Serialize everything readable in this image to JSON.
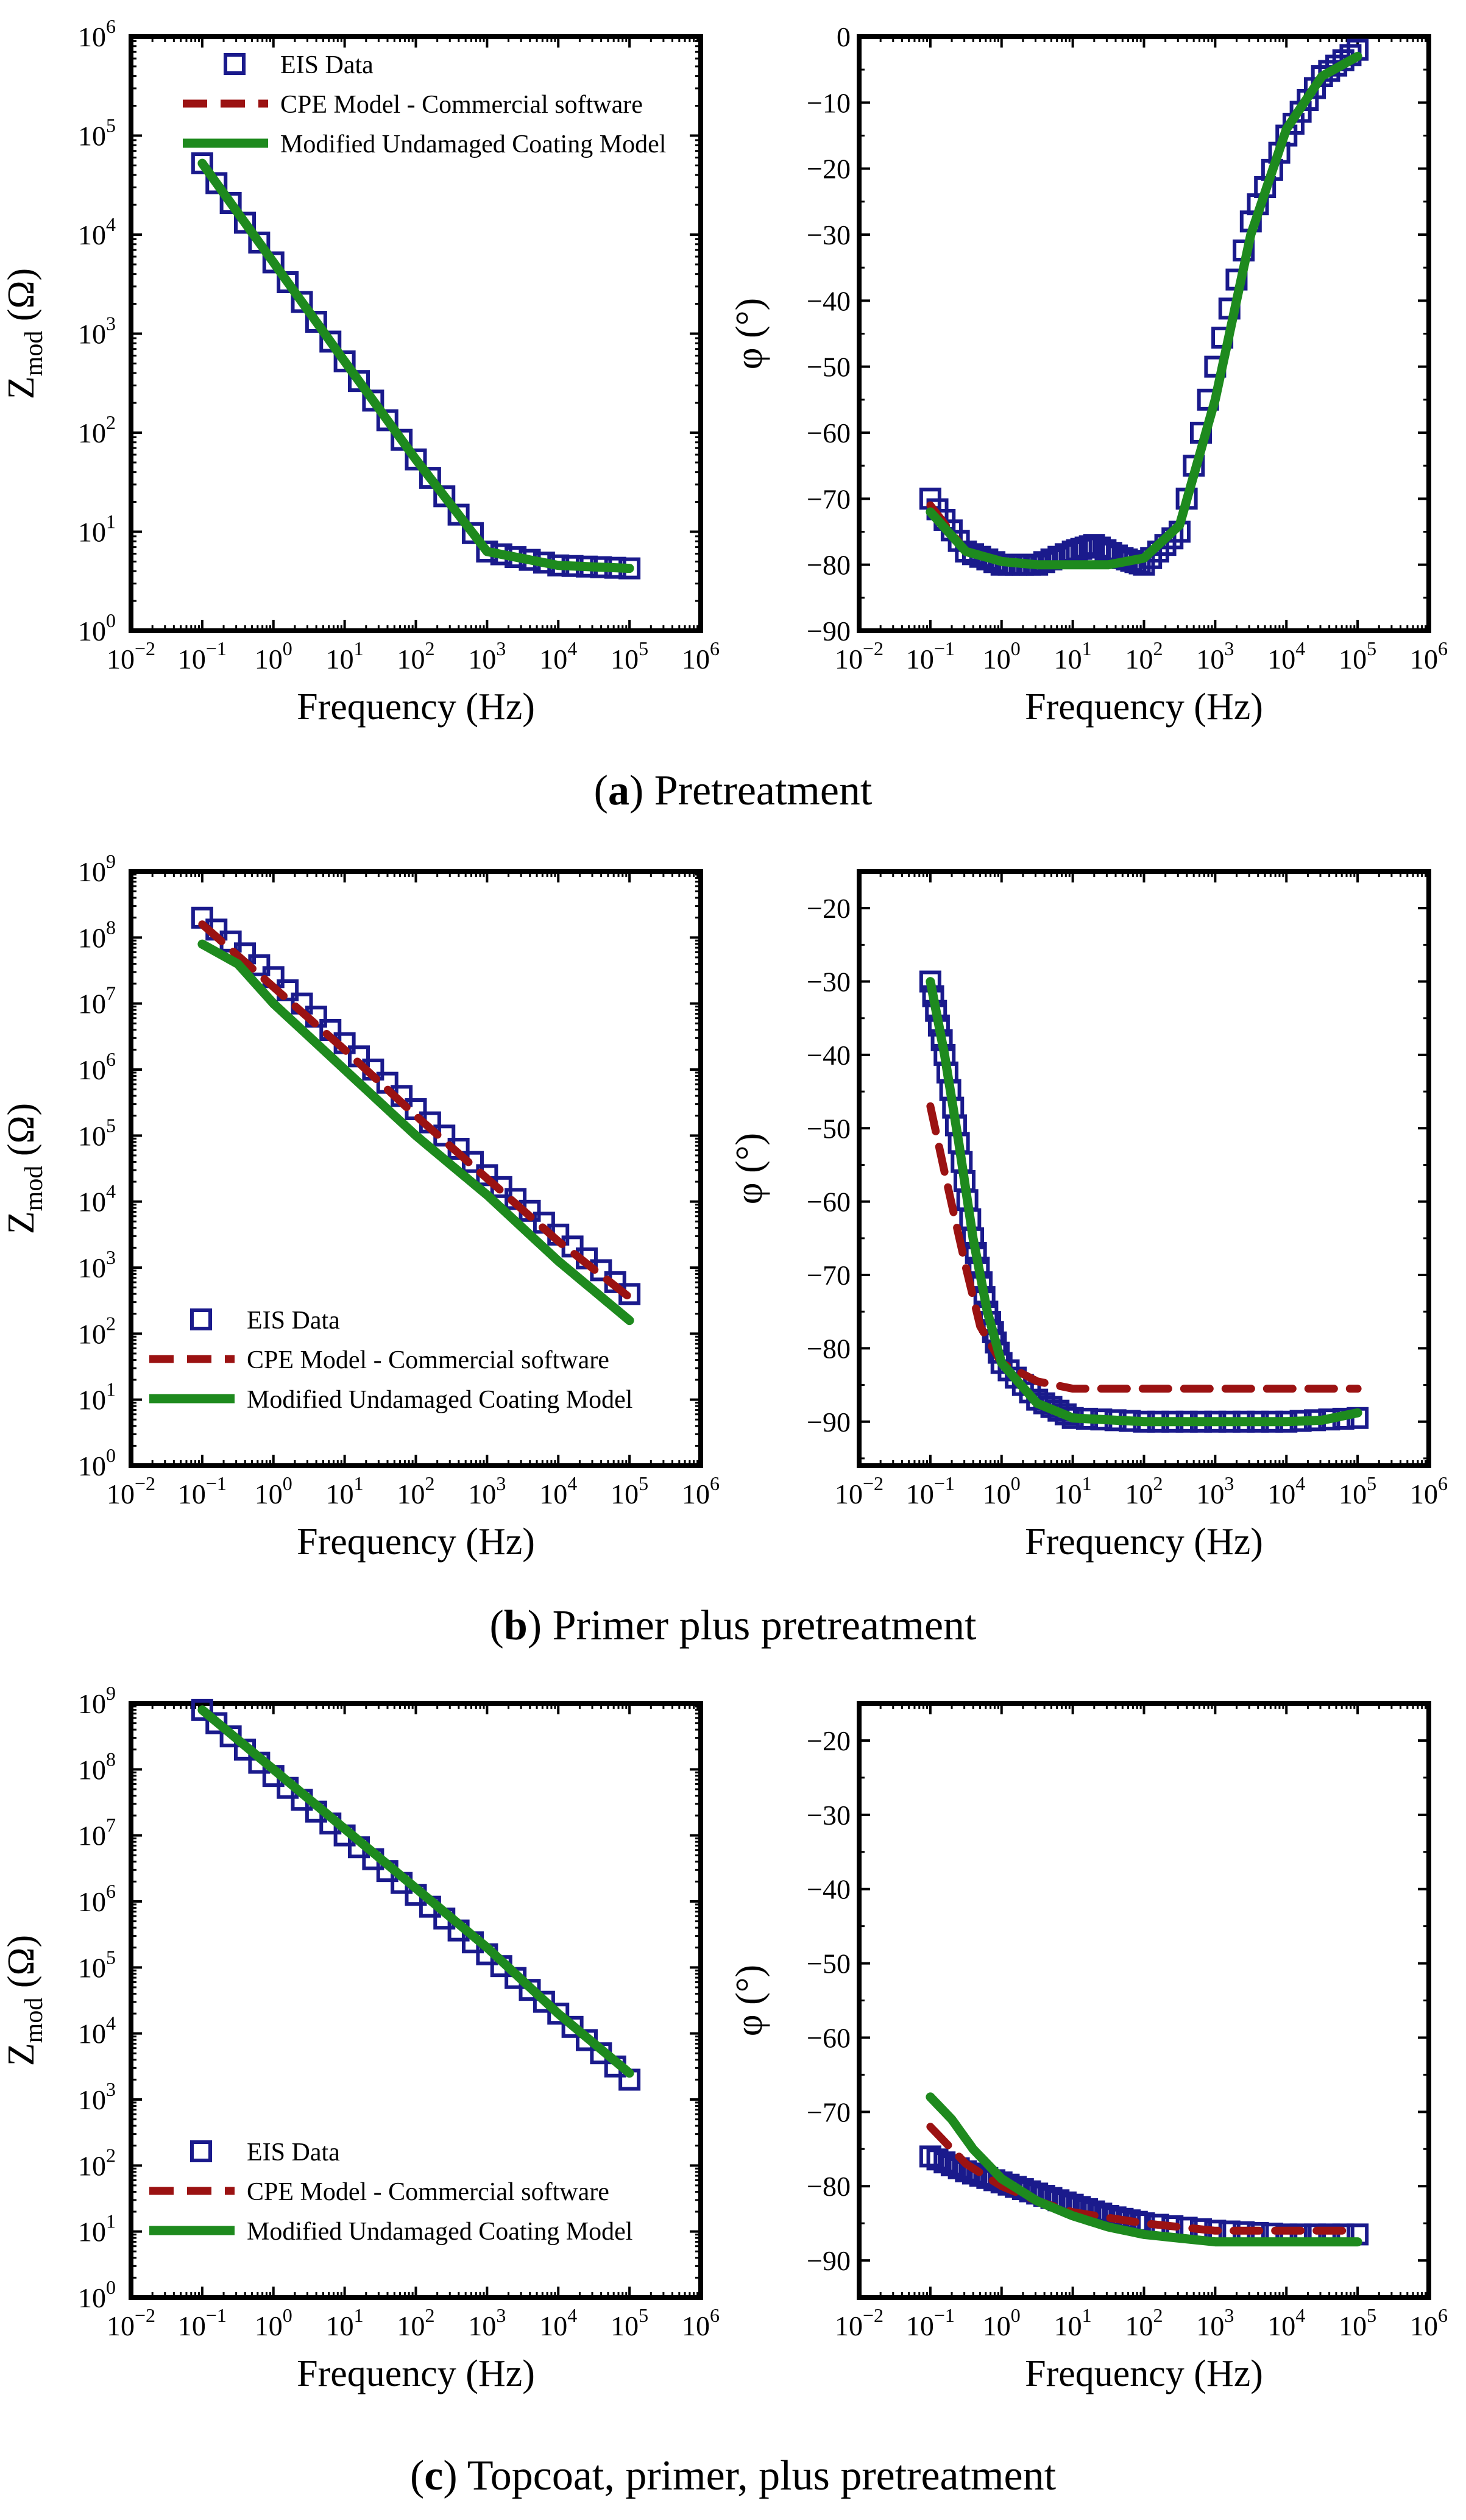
{
  "colors": {
    "eis": "#1a1a8c",
    "cpe": "#9b1212",
    "muc": "#1e8a1e",
    "frame": "#000000"
  },
  "rows": [
    {
      "letter": "a",
      "caption": "Pretreatment",
      "chart_data": [
        {
          "type": "line",
          "quantity": "impedance-modulus",
          "xlabel": "Frequency (Hz)",
          "ylabel_main": "Z",
          "ylabel_sub": "mod",
          "ylabel_unit": " (Ω)",
          "xscale": "log",
          "yscale": "log",
          "xlim": [
            -2,
            6
          ],
          "ylim": [
            0,
            6
          ],
          "xticks": [
            -2,
            -1,
            0,
            1,
            2,
            3,
            4,
            5,
            6
          ],
          "yticks": [
            0,
            1,
            2,
            3,
            4,
            5,
            6
          ],
          "legend": [
            "EIS Data",
            "CPE Model - Commercial software",
            "Modified Undamaged Coating Model"
          ],
          "legend_loc": "top-left",
          "series": [
            {
              "name": "EIS Data",
              "style": "marker",
              "x": [
                -1,
                0,
                1,
                2,
                3,
                4,
                5
              ],
              "y": [
                4.72,
                3.72,
                2.72,
                1.73,
                0.8,
                0.66,
                0.63
              ]
            },
            {
              "name": "CPE Model - Commercial software",
              "style": "dash",
              "x": [
                -1,
                0,
                1,
                2,
                3,
                4,
                5
              ],
              "y": [
                4.72,
                3.72,
                2.72,
                1.73,
                0.8,
                0.66,
                0.63
              ]
            },
            {
              "name": "Modified Undamaged Coating Model",
              "style": "solid",
              "x": [
                -1,
                0,
                1,
                2,
                3,
                4,
                5
              ],
              "y": [
                4.72,
                3.72,
                2.72,
                1.73,
                0.8,
                0.66,
                0.63
              ]
            }
          ]
        },
        {
          "type": "line",
          "quantity": "phase",
          "xlabel": "Frequency (Hz)",
          "ylabel": "φ (°)",
          "xscale": "log",
          "yscale": "linear",
          "xlim": [
            -2,
            6
          ],
          "ylim": [
            -90,
            0
          ],
          "xticks": [
            -2,
            -1,
            0,
            1,
            2,
            3,
            4,
            5,
            6
          ],
          "yticks": [
            0,
            -10,
            -20,
            -30,
            -40,
            -50,
            -60,
            -70,
            -80,
            -90
          ],
          "series": [
            {
              "name": "EIS Data",
              "style": "marker",
              "x": [
                -1,
                -0.5,
                0,
                0.5,
                1,
                1.3,
                1.7,
                2,
                2.5,
                3,
                3.5,
                4,
                4.5,
                5
              ],
              "y": [
                -70,
                -78,
                -80,
                -80,
                -78,
                -77,
                -79,
                -80,
                -75,
                -50,
                -28,
                -15,
                -6,
                -2
              ]
            },
            {
              "name": "CPE Model - Commercial software",
              "style": "dash",
              "x": [
                -1,
                -0.5,
                0,
                0.5,
                1,
                1.5,
                2,
                2.5,
                3,
                3.5,
                4,
                4.5,
                5
              ],
              "y": [
                -71,
                -78,
                -79.5,
                -80,
                -80,
                -80,
                -79,
                -74,
                -55,
                -30,
                -14,
                -6,
                -3
              ]
            },
            {
              "name": "Modified Undamaged Coating Model",
              "style": "solid",
              "x": [
                -1,
                -0.5,
                0,
                0.5,
                1,
                1.5,
                2,
                2.5,
                3,
                3.5,
                4,
                4.5,
                5
              ],
              "y": [
                -72,
                -78,
                -79.5,
                -80,
                -80,
                -80,
                -79,
                -74,
                -55,
                -30,
                -14,
                -6,
                -3
              ]
            }
          ]
        }
      ]
    },
    {
      "letter": "b",
      "caption": "Primer plus pretreatment",
      "chart_data": [
        {
          "type": "line",
          "quantity": "impedance-modulus",
          "xlabel": "Frequency (Hz)",
          "ylabel_main": "Z",
          "ylabel_sub": "mod",
          "ylabel_unit": " (Ω)",
          "xscale": "log",
          "yscale": "log",
          "xlim": [
            -2,
            6
          ],
          "ylim": [
            0,
            9
          ],
          "xticks": [
            -2,
            -1,
            0,
            1,
            2,
            3,
            4,
            5,
            6
          ],
          "yticks": [
            0,
            1,
            2,
            3,
            4,
            5,
            6,
            7,
            8,
            9
          ],
          "legend": [
            "EIS Data",
            "CPE Model - Commercial software",
            "Modified Undamaged Coating Model"
          ],
          "legend_loc": "bottom-left",
          "series": [
            {
              "name": "EIS Data",
              "style": "marker",
              "x": [
                -1,
                0,
                1,
                2,
                3,
                4,
                5
              ],
              "y": [
                8.3,
                7.4,
                6.4,
                5.4,
                4.4,
                3.5,
                2.6
              ]
            },
            {
              "name": "CPE Model - Commercial software",
              "style": "dash",
              "x": [
                -1,
                0,
                1,
                2,
                3,
                4,
                5
              ],
              "y": [
                8.2,
                7.25,
                6.3,
                5.3,
                4.35,
                3.4,
                2.55
              ]
            },
            {
              "name": "Modified Undamaged Coating Model",
              "style": "solid",
              "x": [
                -1,
                -0.5,
                0,
                1,
                2,
                3,
                4,
                5
              ],
              "y": [
                7.9,
                7.6,
                7.0,
                6.0,
                5.0,
                4.1,
                3.1,
                2.2
              ]
            }
          ]
        },
        {
          "type": "line",
          "quantity": "phase",
          "xlabel": "Frequency (Hz)",
          "ylabel": "φ (°)",
          "xscale": "log",
          "yscale": "linear",
          "xlim": [
            -2,
            6
          ],
          "ylim": [
            -96,
            -15
          ],
          "xticks": [
            -2,
            -1,
            0,
            1,
            2,
            3,
            4,
            5,
            6
          ],
          "yticks": [
            -20,
            -30,
            -40,
            -50,
            -60,
            -70,
            -80,
            -90
          ],
          "series": [
            {
              "name": "EIS Data",
              "style": "marker",
              "x": [
                -1,
                -0.8,
                -0.6,
                -0.4,
                -0.2,
                0,
                0.5,
                1,
                2,
                3,
                4,
                5
              ],
              "y": [
                -30,
                -40,
                -52,
                -65,
                -75,
                -82,
                -87,
                -89.5,
                -90,
                -90,
                -90,
                -89.5
              ]
            },
            {
              "name": "CPE Model - Commercial software",
              "style": "dash",
              "x": [
                -1,
                -0.8,
                -0.5,
                -0.3,
                0,
                0.5,
                1,
                2,
                3,
                4,
                5
              ],
              "y": [
                -47,
                -56,
                -69,
                -77,
                -82,
                -84.5,
                -85.5,
                -85.5,
                -85.5,
                -85.5,
                -85.5
              ]
            },
            {
              "name": "Modified Undamaged Coating Model",
              "style": "solid",
              "x": [
                -1,
                -0.8,
                -0.6,
                -0.4,
                -0.2,
                0,
                0.5,
                1,
                2,
                3,
                4,
                4.5,
                5
              ],
              "y": [
                -30,
                -40,
                -52,
                -65,
                -75,
                -82,
                -87.5,
                -89.5,
                -90,
                -90,
                -90,
                -89.8,
                -88.8
              ]
            }
          ]
        }
      ]
    },
    {
      "letter": "c",
      "caption": "Topcoat, primer, plus pretreatment",
      "chart_data": [
        {
          "type": "line",
          "quantity": "impedance-modulus",
          "xlabel": "Frequency (Hz)",
          "ylabel_main": "Z",
          "ylabel_sub": "mod",
          "ylabel_unit": " (Ω)",
          "xscale": "log",
          "yscale": "log",
          "xlim": [
            -2,
            6
          ],
          "ylim": [
            0,
            9
          ],
          "xticks": [
            -2,
            -1,
            0,
            1,
            2,
            3,
            4,
            5,
            6
          ],
          "yticks": [
            0,
            1,
            2,
            3,
            4,
            5,
            6,
            7,
            8,
            9
          ],
          "legend": [
            "EIS Data",
            "CPE Model - Commercial software",
            "Modified Undamaged Coating Model"
          ],
          "legend_loc": "bottom-left",
          "series": [
            {
              "name": "EIS Data",
              "style": "marker",
              "x": [
                -1,
                0,
                1,
                2,
                3,
                4,
                5
              ],
              "y": [
                8.9,
                7.9,
                7.0,
                6.1,
                5.2,
                4.3,
                3.3
              ]
            },
            {
              "name": "CPE Model - Commercial software",
              "style": "dash",
              "x": [
                -1,
                0,
                1,
                2,
                3,
                4,
                5
              ],
              "y": [
                8.9,
                8.0,
                7.1,
                6.2,
                5.3,
                4.3,
                3.4
              ]
            },
            {
              "name": "Modified Undamaged Coating Model",
              "style": "solid",
              "x": [
                -1,
                0,
                1,
                2,
                3,
                4,
                5
              ],
              "y": [
                8.9,
                8.0,
                7.1,
                6.2,
                5.3,
                4.3,
                3.4
              ]
            }
          ]
        },
        {
          "type": "line",
          "quantity": "phase",
          "xlabel": "Frequency (Hz)",
          "ylabel": "φ (°)",
          "xscale": "log",
          "yscale": "linear",
          "xlim": [
            -2,
            6
          ],
          "ylim": [
            -95,
            -15
          ],
          "xticks": [
            -2,
            -1,
            0,
            1,
            2,
            3,
            4,
            5,
            6
          ],
          "yticks": [
            -20,
            -30,
            -40,
            -50,
            -60,
            -70,
            -80,
            -90
          ],
          "series": [
            {
              "name": "EIS Data",
              "style": "marker",
              "x": [
                -1,
                -0.5,
                0,
                0.5,
                1,
                1.5,
                2,
                3,
                4,
                5
              ],
              "y": [
                -76,
                -78,
                -79.5,
                -81,
                -82.5,
                -84,
                -85,
                -86,
                -86.5,
                -86.5
              ]
            },
            {
              "name": "CPE Model - Commercial software",
              "style": "dash",
              "x": [
                -1,
                -0.8,
                -0.5,
                0,
                0.5,
                1,
                2,
                3,
                4,
                5
              ],
              "y": [
                -72,
                -74,
                -77,
                -80,
                -82,
                -83.5,
                -85,
                -86,
                -86,
                -86
              ]
            },
            {
              "name": "Modified Undamaged Coating Model",
              "style": "solid",
              "x": [
                -1,
                -0.7,
                -0.4,
                0,
                0.5,
                1,
                1.5,
                2,
                3,
                4,
                5
              ],
              "y": [
                -68,
                -71,
                -75,
                -79,
                -82,
                -84,
                -85.5,
                -86.5,
                -87.5,
                -87.5,
                -87.5
              ]
            }
          ]
        }
      ]
    }
  ]
}
